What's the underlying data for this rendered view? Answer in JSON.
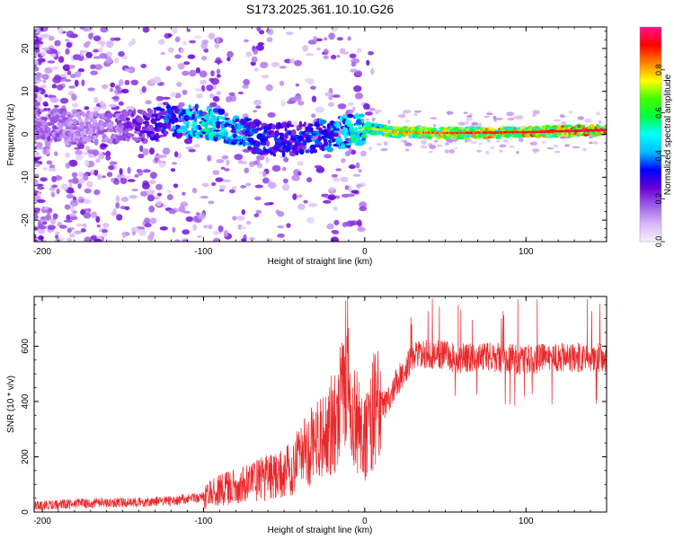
{
  "title": "S173.2025.361.10.10.G26",
  "chart_data": [
    {
      "type": "heatmap",
      "xlabel": "Height of straight line (km)",
      "ylabel": "Frequency (Hz)",
      "xlim": [
        -205,
        150
      ],
      "ylim": [
        -25,
        25
      ],
      "xticks": [
        -200,
        -100,
        0,
        100
      ],
      "xtick_labels": [
        "-200",
        "-100",
        "0",
        "100"
      ],
      "yticks": [
        -20,
        -10,
        0,
        10,
        20
      ],
      "ytick_labels": [
        "-20",
        "-10",
        "0",
        "10",
        "20"
      ],
      "colorbar": {
        "label": "Normalized spectral amplitude",
        "range": [
          0,
          1
        ],
        "ticks": [
          0.0,
          0.2,
          0.4,
          0.6,
          0.8
        ],
        "tick_labels": [
          "0.0",
          "0.2",
          "0.4",
          "0.6",
          "0.8"
        ],
        "colors": [
          "#f5f0fb",
          "#d9b8f7",
          "#a15de8",
          "#6a00d8",
          "#0000ff",
          "#00bfff",
          "#00ffff",
          "#00ff40",
          "#40ff00",
          "#ffff00",
          "#ff8000",
          "#ff0000",
          "#ff1493"
        ]
      },
      "ridge": {
        "description_points_x": [
          -200,
          -170,
          -140,
          -120,
          -100,
          -80,
          -60,
          -40,
          -20,
          0,
          20,
          50,
          100,
          150
        ],
        "frequency_hz": [
          2.5,
          1.5,
          2.0,
          3.0,
          3.0,
          1.0,
          -1.5,
          -1.0,
          0.0,
          1.5,
          0.5,
          0.3,
          0.5,
          1.0
        ],
        "peak_amplitude": [
          0.2,
          0.15,
          0.25,
          0.4,
          0.55,
          0.45,
          0.35,
          0.35,
          0.45,
          0.6,
          0.75,
          0.8,
          0.85,
          0.9
        ]
      }
    },
    {
      "type": "line",
      "xlabel": "Height of straight line (km)",
      "ylabel": "SNR (10 * v/v)",
      "xlim": [
        -205,
        150
      ],
      "ylim": [
        0,
        780
      ],
      "xticks": [
        -200,
        -100,
        0,
        100
      ],
      "xtick_labels": [
        "-200",
        "-100",
        "0",
        "100"
      ],
      "yticks": [
        0,
        200,
        400,
        600
      ],
      "ytick_labels": [
        "0",
        "200",
        "400",
        "600"
      ],
      "color": "#e8282b",
      "series": [
        {
          "name": "SNR",
          "x": [
            -205,
            -180,
            -150,
            -120,
            -100,
            -90,
            -70,
            -50,
            -40,
            -30,
            -20,
            -15,
            -10,
            -5,
            0,
            5,
            10,
            15,
            20,
            25,
            30,
            40,
            60,
            80,
            100,
            120,
            150
          ],
          "y": [
            20,
            30,
            35,
            40,
            55,
            80,
            110,
            140,
            190,
            260,
            320,
            380,
            430,
            330,
            260,
            360,
            380,
            410,
            470,
            520,
            560,
            575,
            555,
            560,
            550,
            560,
            560
          ]
        }
      ],
      "spikes": [
        {
          "x": -12,
          "y": 765
        },
        {
          "x": 58,
          "y": 750
        },
        {
          "x": 95,
          "y": 770
        },
        {
          "x": 107,
          "y": 770
        },
        {
          "x": 138,
          "y": 770
        }
      ]
    }
  ]
}
